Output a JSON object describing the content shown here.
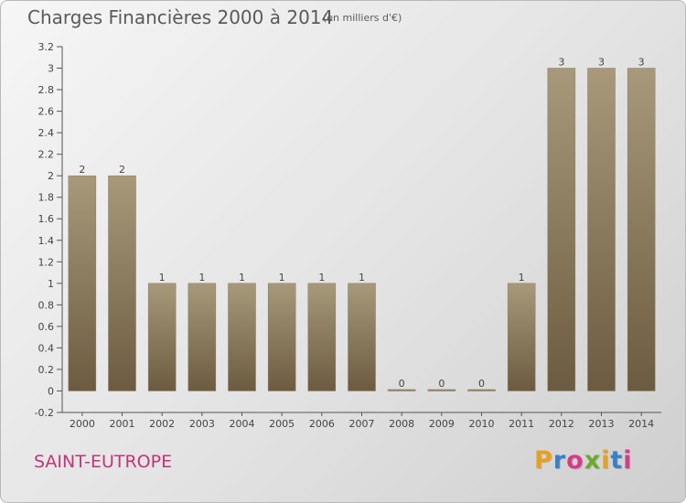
{
  "header": {
    "title": "Charges Financières 2000 à 2014",
    "unit": "(en milliers d'€)"
  },
  "footer": {
    "commune": "SAINT-EUTROPE",
    "brand": "Proxiti"
  },
  "colors": {
    "bar_top": "#a8997b",
    "bar_bottom": "#6c5b40",
    "commune": "#c0357a",
    "brand_letters": [
      "#e8a020",
      "#3a7fc8",
      "#d83a8a",
      "#6aaa2a",
      "#e8a020",
      "#3a7fc8",
      "#d83a8a"
    ]
  },
  "chart_data": {
    "type": "bar",
    "title": "Charges Financières 2000 à 2014",
    "subtitle": "(en milliers d'€)",
    "categories": [
      "2000",
      "2001",
      "2002",
      "2003",
      "2004",
      "2005",
      "2006",
      "2007",
      "2008",
      "2009",
      "2010",
      "2011",
      "2012",
      "2013",
      "2014"
    ],
    "values": [
      2,
      2,
      1,
      1,
      1,
      1,
      1,
      1,
      0,
      0,
      0,
      1,
      3,
      3,
      3
    ],
    "data_labels": [
      "2",
      "2",
      "1",
      "1",
      "1",
      "1",
      "1",
      "1",
      "0",
      "0",
      "0",
      "1",
      "3",
      "3",
      "3"
    ],
    "ylim": [
      -0.2,
      3.2
    ],
    "yticks": [
      -0.2,
      0,
      0.2,
      0.4,
      0.6,
      0.8,
      1,
      1.2,
      1.4,
      1.6,
      1.8,
      2,
      2.2,
      2.4,
      2.6,
      2.8,
      3,
      3.2
    ],
    "ytick_labels": [
      "-0.2",
      "0",
      "0.2",
      "0.4",
      "0.6",
      "0.8",
      "1",
      "1.2",
      "1.4",
      "1.6",
      "1.8",
      "2",
      "2.2",
      "2.4",
      "2.6",
      "2.8",
      "3",
      "3.2"
    ],
    "xlabel": "",
    "ylabel": "",
    "grid": false,
    "legend": "none"
  }
}
